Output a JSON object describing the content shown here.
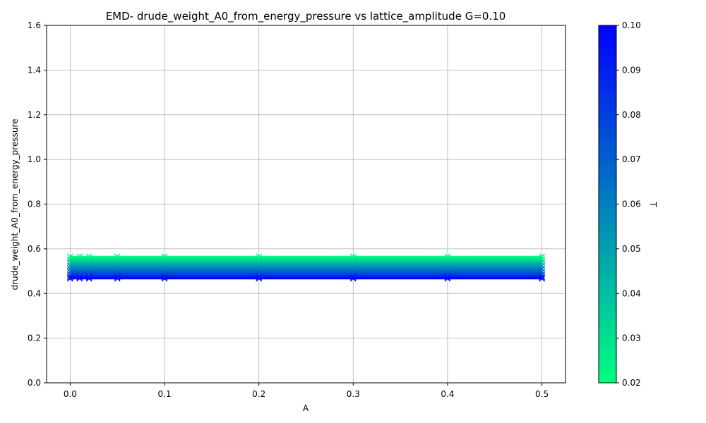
{
  "chart_data": {
    "type": "line",
    "title": "EMD- drude_weight_A0_from_energy_pressure vs lattice_amplitude G=0.10",
    "xlabel": "A",
    "ylabel": "drude_weight_A0_from_energy_pressure",
    "xlim": [
      -0.025,
      0.525
    ],
    "ylim": [
      0.0,
      1.6
    ],
    "x_ticks": [
      0.0,
      0.1,
      0.2,
      0.3,
      0.4,
      0.5
    ],
    "x_tick_labels": [
      "0.0",
      "0.1",
      "0.2",
      "0.3",
      "0.4",
      "0.5"
    ],
    "y_ticks": [
      0.0,
      0.2,
      0.4,
      0.6,
      0.8,
      1.0,
      1.2,
      1.4,
      1.6
    ],
    "y_tick_labels": [
      "0.0",
      "0.2",
      "0.4",
      "0.6",
      "0.8",
      "1.0",
      "1.2",
      "1.4",
      "1.6"
    ],
    "grid": true,
    "x": [
      0.0,
      0.01,
      0.02,
      0.05,
      0.1,
      0.2,
      0.3,
      0.4,
      0.5
    ],
    "series_note_T_range": [
      0.02,
      0.1
    ],
    "series": [
      {
        "T": 0.02,
        "values": [
          0.565,
          0.565,
          0.565,
          0.565,
          0.565,
          0.565,
          0.565,
          0.565,
          0.565
        ]
      },
      {
        "T": 0.03,
        "values": [
          0.551,
          0.551,
          0.551,
          0.551,
          0.551,
          0.551,
          0.551,
          0.551,
          0.551
        ]
      },
      {
        "T": 0.04,
        "values": [
          0.538,
          0.538,
          0.538,
          0.538,
          0.538,
          0.538,
          0.538,
          0.538,
          0.538
        ]
      },
      {
        "T": 0.05,
        "values": [
          0.524,
          0.524,
          0.524,
          0.524,
          0.524,
          0.524,
          0.524,
          0.524,
          0.524
        ]
      },
      {
        "T": 0.06,
        "values": [
          0.511,
          0.511,
          0.511,
          0.511,
          0.511,
          0.511,
          0.511,
          0.511,
          0.511
        ]
      },
      {
        "T": 0.07,
        "values": [
          0.497,
          0.497,
          0.497,
          0.497,
          0.497,
          0.497,
          0.497,
          0.497,
          0.497
        ]
      },
      {
        "T": 0.08,
        "values": [
          0.484,
          0.484,
          0.484,
          0.484,
          0.484,
          0.484,
          0.484,
          0.484,
          0.484
        ]
      },
      {
        "T": 0.09,
        "values": [
          0.474,
          0.474,
          0.474,
          0.474,
          0.474,
          0.474,
          0.474,
          0.474,
          0.474
        ]
      },
      {
        "T": 0.1,
        "values": [
          0.467,
          0.467,
          0.467,
          0.467,
          0.467,
          0.467,
          0.467,
          0.467,
          0.467
        ]
      }
    ],
    "colorbar": {
      "label": "T",
      "range": [
        0.02,
        0.1
      ],
      "ticks": [
        0.02,
        0.03,
        0.04,
        0.05,
        0.06,
        0.07,
        0.08,
        0.09,
        0.1
      ],
      "tick_labels": [
        "0.02",
        "0.03",
        "0.04",
        "0.05",
        "0.06",
        "0.07",
        "0.08",
        "0.09",
        "0.10"
      ],
      "color_low": "#00ff80",
      "color_high": "#0000ff",
      "colormap": "winter"
    },
    "marker": "x",
    "grid_color": "#b0b0b0"
  }
}
